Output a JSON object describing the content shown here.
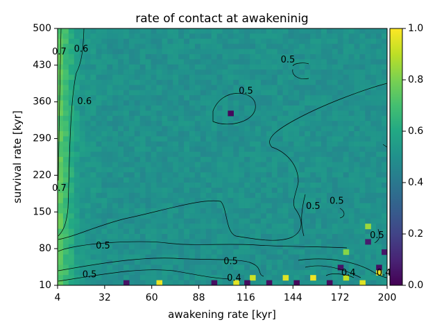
{
  "chart_data": {
    "type": "heatmap",
    "title": "rate of contact at awakeninig",
    "xlabel": "awakening rate [kyr]",
    "ylabel": "survival rate [kyr]",
    "x_ticks": [
      "4",
      "32",
      "60",
      "88",
      "116",
      "144",
      "172",
      "200"
    ],
    "y_ticks": [
      "10",
      "80",
      "150",
      "220",
      "290",
      "360",
      "430",
      "500"
    ],
    "xlim": [
      4,
      200
    ],
    "ylim": [
      10,
      500
    ],
    "colorbar": {
      "min": 0.0,
      "max": 1.0,
      "ticks": [
        "0.0",
        "0.2",
        "0.4",
        "0.6",
        "0.8",
        "1.0"
      ],
      "colormap": "viridis"
    },
    "background_value": 0.5,
    "left_edge_value": 0.72,
    "contour_levels": [
      "0.4",
      "0.5",
      "0.6",
      "0.7"
    ],
    "contour_labels": [
      {
        "text": "0.7",
        "x": 5,
        "y": 455
      },
      {
        "text": "0.6",
        "x": 18,
        "y": 460
      },
      {
        "text": "0.6",
        "x": 20,
        "y": 360
      },
      {
        "text": "0.7",
        "x": 5,
        "y": 195
      },
      {
        "text": "0.5",
        "x": 116,
        "y": 380
      },
      {
        "text": "0.5",
        "x": 141,
        "y": 440
      },
      {
        "text": "0.5",
        "x": 156,
        "y": 160
      },
      {
        "text": "0.5",
        "x": 170,
        "y": 170
      },
      {
        "text": "0.5",
        "x": 194,
        "y": 105
      },
      {
        "text": "0.5",
        "x": 31,
        "y": 85
      },
      {
        "text": "0.5",
        "x": 23,
        "y": 30
      },
      {
        "text": "0.5",
        "x": 107,
        "y": 55
      },
      {
        "text": "0.4",
        "x": 109,
        "y": 23
      },
      {
        "text": "0.4",
        "x": 177,
        "y": 33
      },
      {
        "text": "0.4",
        "x": 198,
        "y": 33
      }
    ],
    "notable_cells": [
      {
        "x": 106,
        "y": 335,
        "value": 0.02
      },
      {
        "x": 64,
        "y": 10,
        "value": 0.97
      },
      {
        "x": 111,
        "y": 10,
        "value": 0.96
      },
      {
        "x": 119,
        "y": 25,
        "value": 0.92
      },
      {
        "x": 138,
        "y": 20,
        "value": 0.95
      },
      {
        "x": 155,
        "y": 20,
        "value": 0.98
      },
      {
        "x": 176,
        "y": 25,
        "value": 0.9
      },
      {
        "x": 186,
        "y": 10,
        "value": 0.95
      },
      {
        "x": 196,
        "y": 35,
        "value": 0.97
      },
      {
        "x": 176,
        "y": 75,
        "value": 0.82
      },
      {
        "x": 190,
        "y": 95,
        "value": 0.08
      },
      {
        "x": 200,
        "y": 70,
        "value": 0.06
      },
      {
        "x": 190,
        "y": 120,
        "value": 0.85
      },
      {
        "x": 44,
        "y": 10,
        "value": 0.05
      },
      {
        "x": 96,
        "y": 10,
        "value": 0.04
      },
      {
        "x": 116,
        "y": 10,
        "value": 0.03
      },
      {
        "x": 131,
        "y": 10,
        "value": 0.04
      },
      {
        "x": 145,
        "y": 10,
        "value": 0.02
      },
      {
        "x": 166,
        "y": 10,
        "value": 0.03
      },
      {
        "x": 171,
        "y": 45,
        "value": 0.05
      },
      {
        "x": 196,
        "y": 45,
        "value": 0.04
      }
    ]
  }
}
